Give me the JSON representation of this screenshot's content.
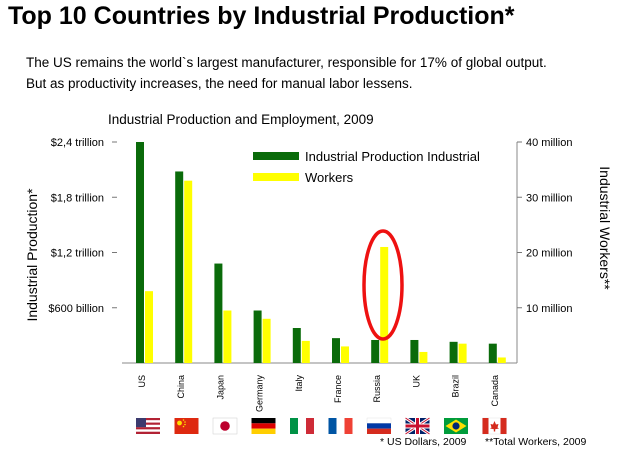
{
  "page": {
    "title": "Top 10 Countries by Industrial Production*",
    "subtitle": "The US remains the world`s largest manufacturer, responsible for 17%     of global output. But as productivity increases, the need for manual labor lessens.",
    "footnote_left": "* US Dollars, 2009",
    "footnote_right": "**Total Workers, 2009"
  },
  "chart_data": {
    "type": "bar",
    "title": "Industrial Production and Employment, 2009",
    "ylabel": "Industrial Production*",
    "y2label": "Industrial Workers**",
    "categories": [
      "US",
      "China",
      "Japan",
      "Germany",
      "Italy",
      "France",
      "Russia",
      "UK",
      "Brazil",
      "Canada"
    ],
    "series": [
      {
        "name": "Industrial Production Industrial",
        "axis": "left",
        "unit": "USD billion",
        "color": "#0a6b0a",
        "values": [
          2400,
          2080,
          1080,
          570,
          380,
          270,
          250,
          250,
          230,
          210
        ]
      },
      {
        "name": "Workers",
        "axis": "right",
        "unit": "million",
        "color": "#ffff00",
        "values": [
          13,
          33,
          9.5,
          8,
          4,
          3,
          21,
          2,
          3.5,
          1
        ]
      }
    ],
    "ylim": [
      0,
      2400
    ],
    "y2lim": [
      0,
      40
    ],
    "yticks": [
      {
        "value": 600,
        "label": "$600 billion"
      },
      {
        "value": 1200,
        "label": "$1,2 trillion"
      },
      {
        "value": 1800,
        "label": "$1,8 trillion"
      },
      {
        "value": 2400,
        "label": "$2,4 trillion"
      }
    ],
    "y2ticks": [
      {
        "value": 10,
        "label": "10 million"
      },
      {
        "value": 20,
        "label": "20 million"
      },
      {
        "value": 30,
        "label": "30 million"
      },
      {
        "value": 40,
        "label": "40 million"
      }
    ],
    "legend_position": "top-right",
    "grid": false,
    "annotations": [
      {
        "type": "ellipse",
        "target": "Russia",
        "series": "Workers",
        "color": "#ee1111"
      }
    ],
    "flags": [
      "us-flag",
      "china-flag",
      "japan-flag",
      "germany-flag",
      "italy-flag",
      "france-flag",
      "russia-flag",
      "uk-flag",
      "brazil-flag",
      "canada-flag"
    ]
  }
}
